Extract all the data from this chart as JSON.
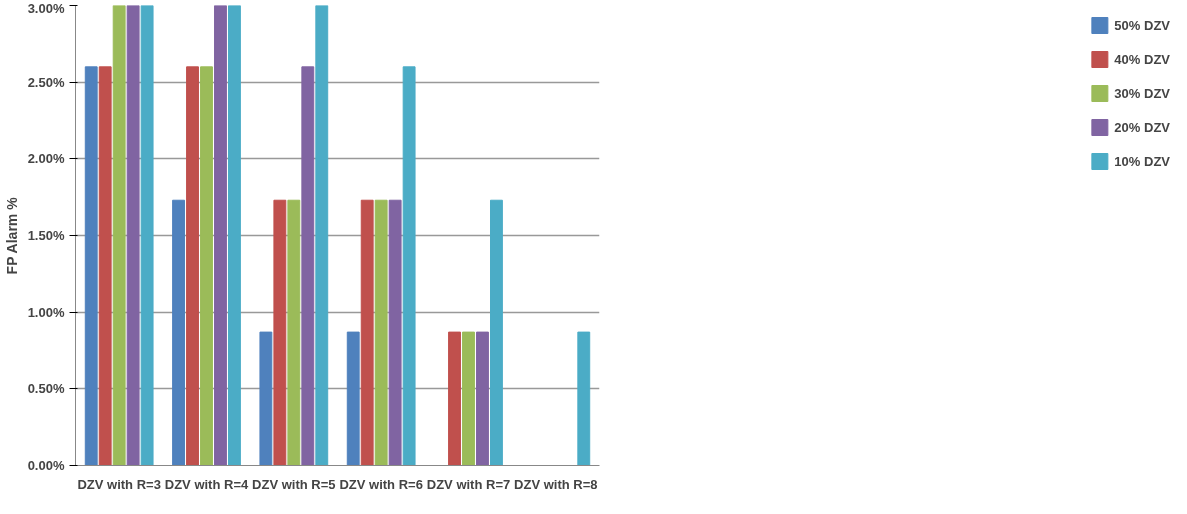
{
  "chart_data": {
    "type": "bar",
    "ylabel": "FP Alarm %",
    "categories": [
      "DZV with R=3",
      "DZV with R=4",
      "DZV with R=5",
      "DZV with R=6",
      "DZV with R=7",
      "DZV with R=8"
    ],
    "series": [
      {
        "name": "50% DZV",
        "color": "#4f81bd",
        "values": [
          2.6,
          1.73,
          0.87,
          0.87,
          0,
          0
        ]
      },
      {
        "name": "40% DZV",
        "color": "#c0504d",
        "values": [
          2.6,
          2.6,
          1.73,
          1.73,
          0.87,
          0
        ]
      },
      {
        "name": "30% DZV",
        "color": "#9bbb59",
        "values": [
          3.0,
          2.6,
          1.73,
          1.73,
          0.87,
          0
        ]
      },
      {
        "name": "20% DZV",
        "color": "#8064a2",
        "values": [
          3.0,
          3.0,
          2.6,
          1.73,
          0.87,
          0
        ]
      },
      {
        "name": "10% DZV",
        "color": "#4bacc6",
        "values": [
          3.0,
          3.0,
          3.0,
          2.6,
          1.73,
          0.87
        ]
      }
    ],
    "ylim": [
      0,
      3
    ],
    "yticks": [
      {
        "value": 0,
        "label": "0.00%"
      },
      {
        "value": 0.5,
        "label": "0.50%"
      },
      {
        "value": 1,
        "label": "1.00%"
      },
      {
        "value": 1.5,
        "label": "1.50%"
      },
      {
        "value": 2,
        "label": "2.00%"
      },
      {
        "value": 2.5,
        "label": "2.50%"
      },
      {
        "value": 3,
        "label": "3.00%"
      }
    ],
    "grid": "y",
    "legend": "right"
  }
}
